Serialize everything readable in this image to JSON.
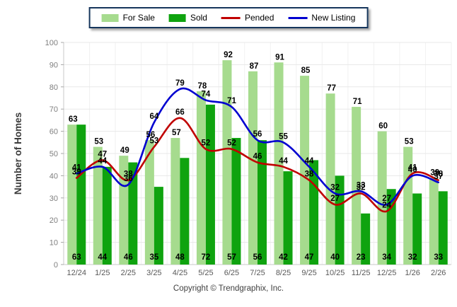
{
  "chart_data": {
    "type": "combo",
    "subtype": "grouped-bars-with-smoothed-lines",
    "categories": [
      "12/24",
      "1/25",
      "2/25",
      "3/25",
      "4/25",
      "5/25",
      "6/25",
      "7/25",
      "8/25",
      "9/25",
      "10/25",
      "11/25",
      "12/25",
      "1/26",
      "2/26"
    ],
    "series": [
      {
        "name": "For Sale",
        "type": "bar",
        "color": "#A6DB8E",
        "values": [
          63,
          53,
          49,
          56,
          57,
          78,
          92,
          87,
          91,
          85,
          77,
          71,
          60,
          53,
          39
        ]
      },
      {
        "name": "Sold",
        "type": "bar",
        "color": "#0FA30F",
        "values": [
          63,
          44,
          46,
          35,
          48,
          72,
          57,
          56,
          42,
          47,
          40,
          23,
          34,
          32,
          33
        ]
      },
      {
        "name": "Pended",
        "type": "line",
        "color": "#C00000",
        "values": [
          39,
          47,
          38,
          53,
          66,
          52,
          52,
          46,
          44,
          38,
          27,
          32,
          24,
          41,
          38
        ]
      },
      {
        "name": "New Listing",
        "type": "line",
        "color": "#0000D0",
        "values": [
          41,
          44,
          36,
          64,
          79,
          74,
          71,
          56,
          55,
          44,
          32,
          33,
          27,
          40,
          37
        ]
      }
    ],
    "title": "",
    "xlabel": "",
    "ylabel": "Number of Homes",
    "ylim": [
      0,
      100
    ],
    "ytick_step": 10,
    "grid": true,
    "legend_position": "top-center",
    "label_color": "#000000",
    "axis_text_color": "#7F7F7F",
    "x_axis_text_color": "#595959"
  },
  "footer": {
    "copyright": "Copyright © Trendgraphix, Inc."
  }
}
